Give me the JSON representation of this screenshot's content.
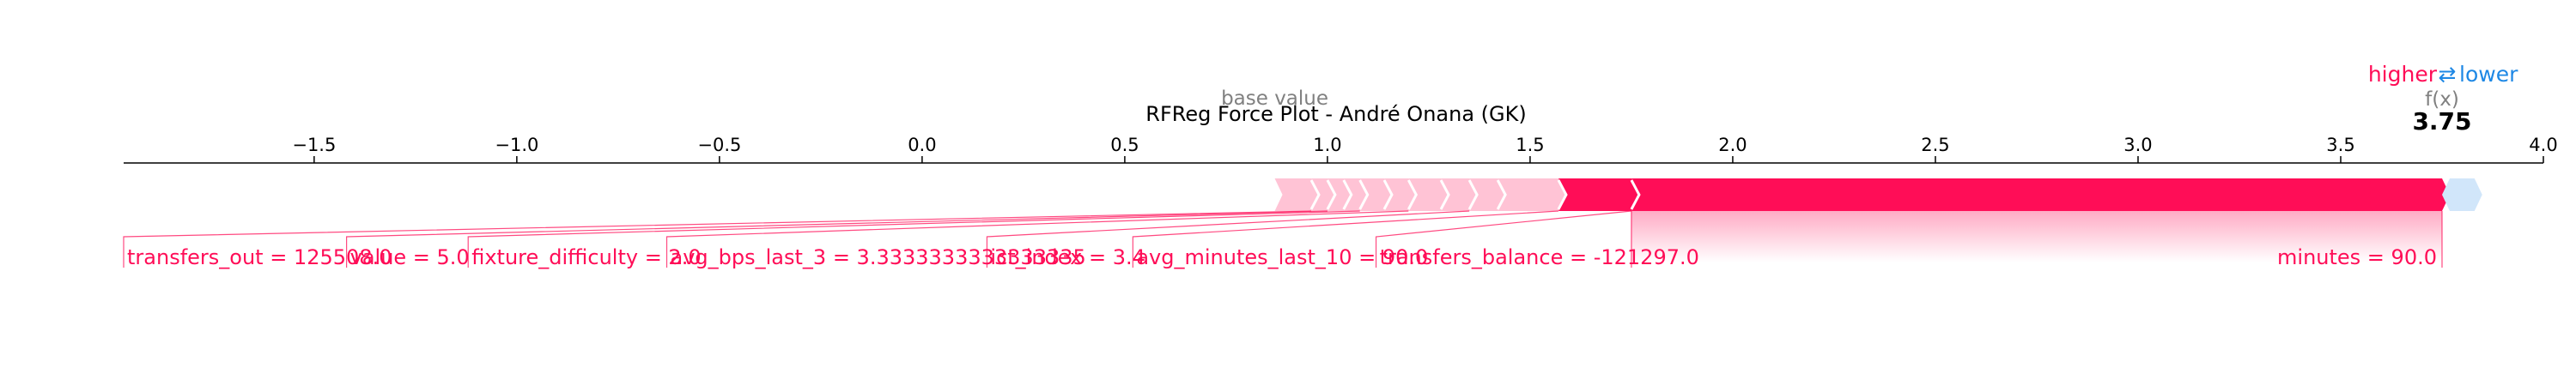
{
  "chart_data": {
    "type": "force",
    "title": "RFReg Force Plot - André Onana (GK)",
    "xlim": [
      -1.97,
      4.0
    ],
    "ticks": [
      -1.5,
      -1.0,
      -0.5,
      0.0,
      0.5,
      1.0,
      1.5,
      2.0,
      2.5,
      3.0,
      3.5,
      4.0
    ],
    "tick_labels": [
      "−1.5",
      "−1.0",
      "−0.5",
      "0.0",
      "0.5",
      "1.0",
      "1.5",
      "2.0",
      "2.5",
      "3.0",
      "3.5",
      "4.0"
    ],
    "base_value": 0.87,
    "base_value_label": "base value",
    "output_value": 3.75,
    "output_value_text": "3.75",
    "output_label": "f(x)",
    "legend": {
      "higher": "higher",
      "arrows": "⇄",
      "lower": "lower"
    },
    "colors": {
      "positive": "#ff0d57",
      "positive_light": "#ffc3d5",
      "negative": "#1e88e5",
      "negative_light": "#d1e6fa",
      "base_label": "#808080"
    },
    "positive_segments": [
      {
        "start": 0.87,
        "end": 0.96
      },
      {
        "start": 0.96,
        "end": 1.0
      },
      {
        "start": 1.0,
        "end": 1.04
      },
      {
        "start": 1.04,
        "end": 1.08
      },
      {
        "start": 1.08,
        "end": 1.14
      },
      {
        "start": 1.14,
        "end": 1.2
      },
      {
        "start": 1.2,
        "end": 1.28
      },
      {
        "start": 1.28,
        "end": 1.35
      },
      {
        "start": 1.35,
        "end": 1.42
      },
      {
        "start": 1.42,
        "end": 1.57
      },
      {
        "start": 1.57,
        "end": 1.75
      },
      {
        "start": 1.75,
        "end": 3.75
      }
    ],
    "negative_segments": [
      {
        "start": 3.75,
        "end": 3.83
      }
    ],
    "labels": [
      {
        "text": "transfers_out = 125508.0",
        "anchor": -1.97
      },
      {
        "text": "value = 5.0",
        "anchor": -1.42
      },
      {
        "text": "fixture_difficulty = 2.0",
        "anchor": -1.12
      },
      {
        "text": "avg_bps_last_3 = 3.3333333333333335",
        "anchor": -0.63
      },
      {
        "text": "ict_index = 3.4",
        "anchor": 0.16
      },
      {
        "text": "avg_minutes_last_10 = 90.0",
        "anchor": 0.52
      },
      {
        "text": "transfers_balance = -121297.0",
        "anchor": 1.12
      },
      {
        "text": "minutes = 90.0",
        "anchor": 3.75
      }
    ]
  }
}
